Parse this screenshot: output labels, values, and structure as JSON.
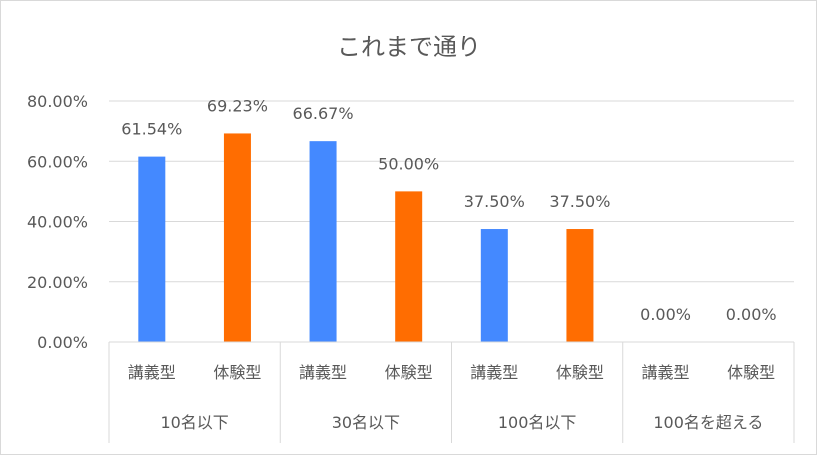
{
  "chart_data": {
    "type": "bar",
    "title": "これまで通り",
    "groups": [
      "10名以下",
      "30名以下",
      "100名以下",
      "100名を超える"
    ],
    "subcategories": [
      "講義型",
      "体験型"
    ],
    "series": [
      {
        "values": [
          61.54,
          66.67,
          37.5,
          0.0
        ],
        "color": "#4489FF"
      },
      {
        "values": [
          69.23,
          50.0,
          37.5,
          0.0
        ],
        "color": "#FF6D01"
      }
    ],
    "data_labels": [
      [
        "61.54%",
        "69.23%"
      ],
      [
        "66.67%",
        "50.00%"
      ],
      [
        "37.50%",
        "37.50%"
      ],
      [
        "0.00%",
        "0.00%"
      ]
    ],
    "yticks": [
      "0.00%",
      "20.00%",
      "40.00%",
      "60.00%",
      "80.00%"
    ],
    "ytick_values": [
      0,
      20,
      40,
      60,
      80
    ],
    "ylim": [
      0,
      80
    ],
    "grid": true,
    "legend": "none",
    "gridline_color": "#d9d9d9",
    "text_color": "#595959"
  }
}
